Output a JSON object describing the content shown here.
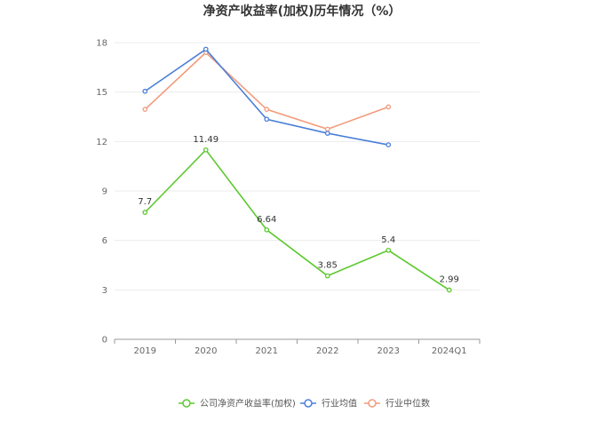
{
  "chart_data": {
    "type": "line",
    "title": "净资产收益率(加权)历年情况（%）",
    "categories": [
      "2019",
      "2020",
      "2021",
      "2022",
      "2023",
      "2024Q1"
    ],
    "ylim": [
      0,
      18
    ],
    "yticks": [
      0,
      3,
      6,
      9,
      12,
      15,
      18
    ],
    "grid": true,
    "legend_position": "bottom-center",
    "series": [
      {
        "name": "公司净资产收益率(加权)",
        "color": "#5cc82e",
        "values": [
          7.7,
          11.49,
          6.64,
          3.85,
          5.4,
          2.99
        ],
        "data_labels": [
          "7.7",
          "11.49",
          "6.64",
          "3.85",
          "5.4",
          "2.99"
        ]
      },
      {
        "name": "行业均值",
        "color": "#4a7fd9",
        "values": [
          15.05,
          17.6,
          13.35,
          12.5,
          11.8,
          null
        ]
      },
      {
        "name": "行业中位数",
        "color": "#f29b7b",
        "values": [
          13.95,
          17.4,
          13.95,
          12.75,
          14.1,
          null
        ]
      }
    ]
  }
}
